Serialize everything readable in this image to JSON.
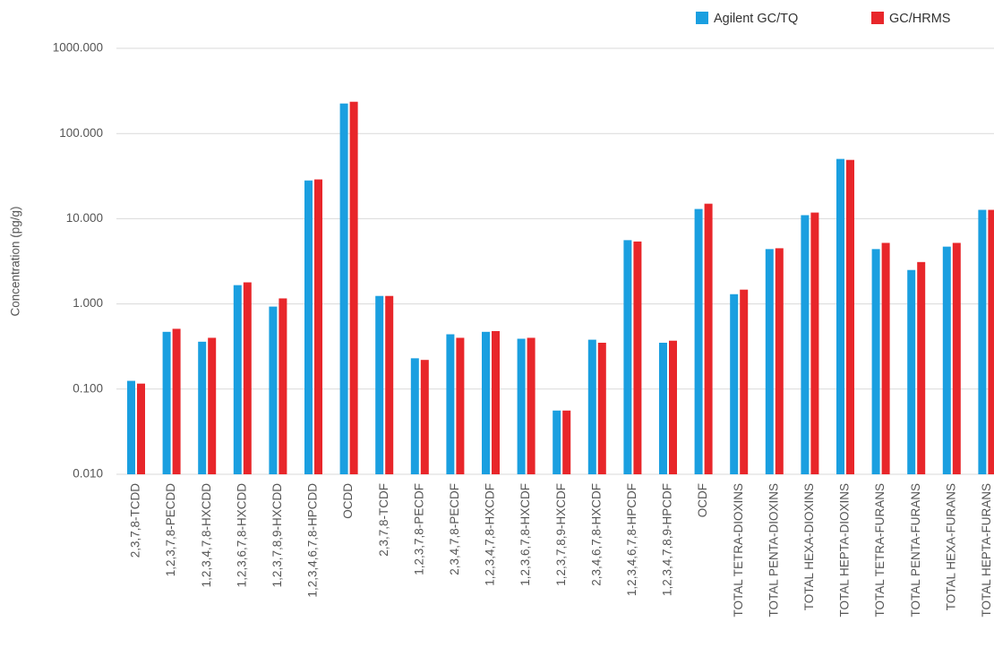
{
  "chart_data": {
    "type": "bar",
    "y_label": "Concentration (pg/g)",
    "log_scale": true,
    "grid": true,
    "legend": "top-right",
    "categories": [
      "2,3,7,8-TCDD",
      "1,2,3,7,8-PECDD",
      "1,2,3,4,7,8-HXCDD",
      "1,2,3,6,7,8-HXCDD",
      "1,2,3,7,8,9-HXCDD",
      "1,2,3,4,6,7,8-HPCDD",
      "OCDD",
      "2,3,7,8-TCDF",
      "1,2,3,7,8-PECDF",
      "2,3,4,7,8-PECDF",
      "1,2,3,4,7,8-HXCDF",
      "1,2,3,6,7,8-HXCDF",
      "1,2,3,7,8,9-HXCDF",
      "2,3,4,6,7,8-HXCDF",
      "1,2,3,4,6,7,8-HPCDF",
      "1,2,3,4,7,8,9-HPCDF",
      "OCDF",
      "TOTAL TETRA-DIOXINS",
      "TOTAL PENTA-DIOXINS",
      "TOTAL HEXA-DIOXINS",
      "TOTAL HEPTA-DIOXINS",
      "TOTAL TETRA-FURANS",
      "TOTAL PENTA-FURANS",
      "TOTAL HEXA-FURANS",
      "TOTAL HEPTA-FURANS"
    ],
    "series": [
      {
        "name": "Agilent GC/TQ",
        "color": "#1a9fe0",
        "values": [
          0.125,
          0.47,
          0.36,
          1.66,
          0.93,
          28.1,
          225,
          1.24,
          0.23,
          0.44,
          0.47,
          0.39,
          0.056,
          0.38,
          5.6,
          0.35,
          13.0,
          1.3,
          4.4,
          11.0,
          50.3,
          4.4,
          2.5,
          4.7,
          12.7
        ]
      },
      {
        "name": "GC/HRMS",
        "color": "#e8262a",
        "values": [
          0.116,
          0.51,
          0.4,
          1.79,
          1.16,
          28.9,
          236,
          1.24,
          0.22,
          0.4,
          0.48,
          0.4,
          0.056,
          0.35,
          5.4,
          0.37,
          15.0,
          1.47,
          4.5,
          11.8,
          49,
          5.2,
          3.1,
          5.2,
          12.7
        ]
      }
    ],
    "ylim": [
      0.01,
      1000
    ],
    "yticks": [
      {
        "value": 0.01,
        "label": "0.010"
      },
      {
        "value": 0.1,
        "label": "0.100"
      },
      {
        "value": 1,
        "label": "1.000"
      },
      {
        "value": 10,
        "label": "10.000"
      },
      {
        "value": 100,
        "label": "100.000"
      },
      {
        "value": 1000,
        "label": "1000.000"
      }
    ]
  }
}
